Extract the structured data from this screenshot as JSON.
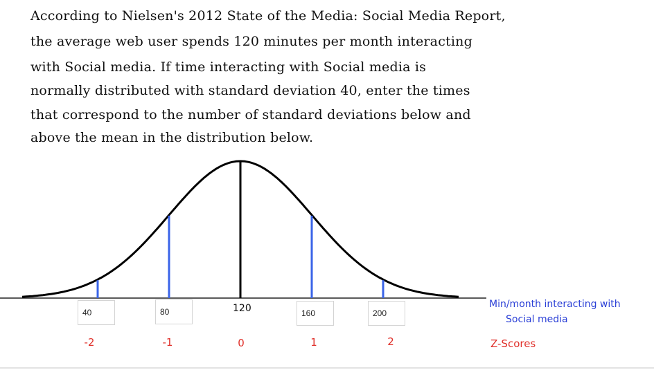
{
  "prompt_lines": [
    "According to Nielsen's 2012 State of the Media: Social Media Report,",
    "the average web user spends 120 minutes per month interacting",
    "with Social media. If time interacting with Social media is",
    "normally distributed with standard deviation 40, enter the times",
    "that correspond to the number of standard deviations below and",
    "above the mean in the distribution below."
  ],
  "distribution": {
    "mean": 120,
    "sd": 40
  },
  "answers": {
    "minus_2": "40",
    "minus_1": "80",
    "mean_label": "120",
    "plus_1": "160",
    "plus_2": "200"
  },
  "z_scores": [
    "-2",
    "-1",
    "0",
    "1",
    "2"
  ],
  "axis_caption_line1": "Min/month interacting with",
  "axis_caption_line2": "Social media",
  "z_caption": "Z-Scores",
  "colors": {
    "sd_lines": "#3a64e8",
    "mean_line": "#000000",
    "z_scores": "#e0302a",
    "caption": "#2a3fd6"
  }
}
